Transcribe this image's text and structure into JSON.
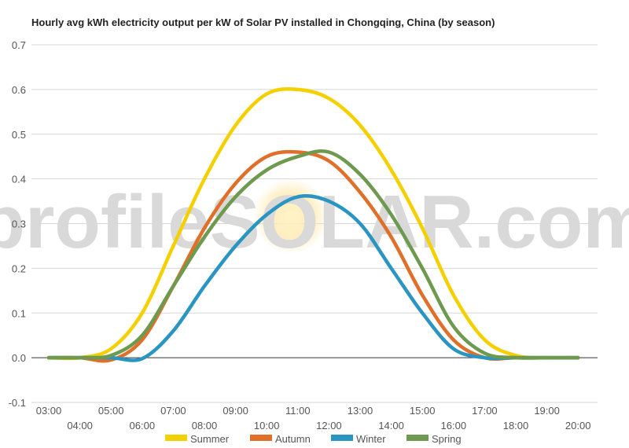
{
  "chart_data": {
    "type": "line",
    "title": "Hourly avg kWh electricity output per kW of Solar PV installed in Chongqing, China (by season)",
    "xlabel": "",
    "ylabel": "",
    "ylim": [
      -0.1,
      0.7
    ],
    "yticks": [
      "-0.1",
      "0.0",
      "0.1",
      "0.2",
      "0.3",
      "0.4",
      "0.5",
      "0.6",
      "0.7"
    ],
    "x": [
      "03:00",
      "04:00",
      "05:00",
      "06:00",
      "07:00",
      "08:00",
      "09:00",
      "10:00",
      "11:00",
      "12:00",
      "13:00",
      "14:00",
      "15:00",
      "16:00",
      "17:00",
      "18:00",
      "19:00",
      "20:00"
    ],
    "grid": true,
    "legend": "bottom",
    "watermark": "profileSOLAR.com",
    "series": [
      {
        "name": "Summer",
        "color": "#f5d000",
        "values": [
          0.0,
          0.0,
          0.02,
          0.1,
          0.25,
          0.4,
          0.52,
          0.59,
          0.6,
          0.58,
          0.52,
          0.42,
          0.29,
          0.14,
          0.04,
          0.005,
          0.0,
          0.0
        ]
      },
      {
        "name": "Autumn",
        "color": "#e06f2a",
        "values": [
          0.0,
          0.0,
          -0.005,
          0.04,
          0.16,
          0.29,
          0.39,
          0.45,
          0.46,
          0.44,
          0.37,
          0.27,
          0.14,
          0.04,
          0.0,
          0.0,
          0.0,
          0.0
        ]
      },
      {
        "name": "Winter",
        "color": "#2b95c2",
        "values": [
          0.0,
          0.0,
          0.0,
          -0.002,
          0.06,
          0.16,
          0.25,
          0.32,
          0.36,
          0.35,
          0.3,
          0.2,
          0.1,
          0.02,
          0.0,
          0.0,
          0.0,
          0.0
        ]
      },
      {
        "name": "Spring",
        "color": "#6d9a4f",
        "values": [
          0.0,
          0.0,
          0.005,
          0.05,
          0.16,
          0.27,
          0.36,
          0.42,
          0.45,
          0.46,
          0.41,
          0.32,
          0.2,
          0.07,
          0.01,
          0.0,
          0.0,
          0.0
        ]
      }
    ]
  }
}
